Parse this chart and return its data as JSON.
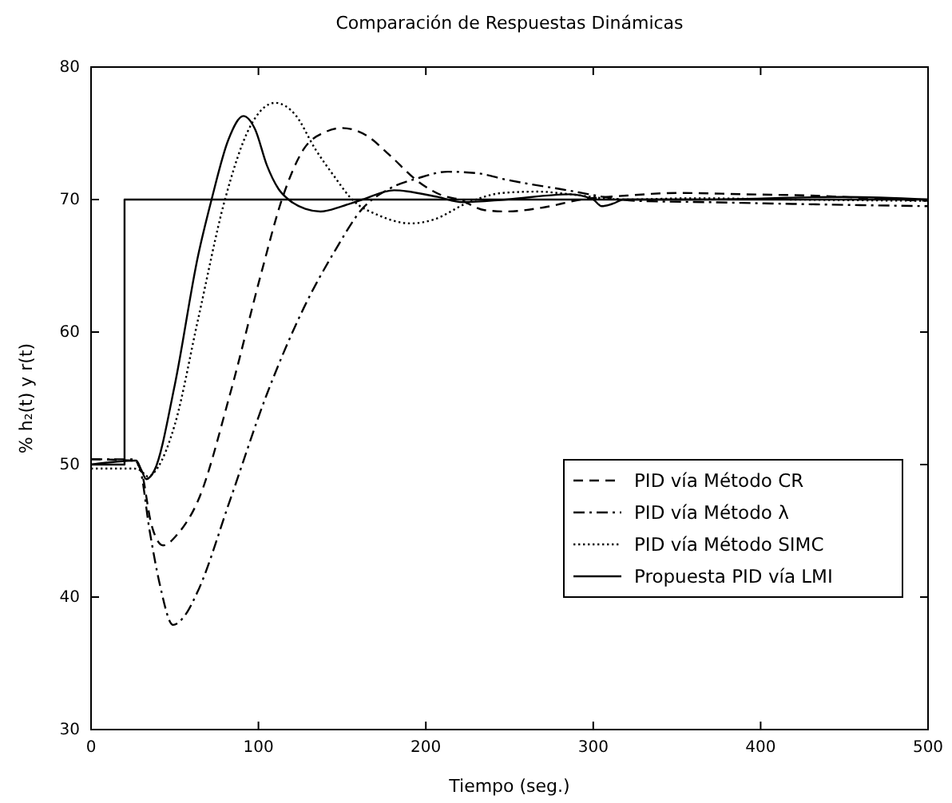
{
  "chart_data": {
    "type": "line",
    "title": "Comparación de Respuestas Dinámicas",
    "xlabel": "Tiempo (seg.)",
    "ylabel": "% h₂(t) y r(t)",
    "xlim": [
      0,
      500
    ],
    "ylim": [
      30,
      80
    ],
    "xticks": [
      0,
      100,
      200,
      300,
      400,
      500
    ],
    "yticks": [
      30,
      40,
      50,
      60,
      70,
      80
    ],
    "grid": false,
    "legend": "bottom right",
    "series": [
      {
        "name": "PID vía Método CR",
        "color": "#000000",
        "line_style": "dashed",
        "x": [
          0,
          25,
          30,
          36,
          43,
          52,
          64,
          83,
          102,
          114,
          127,
          140,
          150,
          165,
          178,
          195,
          210,
          220,
          235,
          248,
          270,
          293,
          320,
          351,
          390,
          430,
          465,
          500
        ],
        "values": [
          50.4,
          50.3,
          49.5,
          45.5,
          43.9,
          44.8,
          47.3,
          55.3,
          64.6,
          70,
          73.8,
          75.1,
          75.4,
          74.8,
          73.4,
          71.4,
          70.3,
          70,
          69.2,
          69.1,
          69.4,
          70,
          70.3,
          70.5,
          70.4,
          70.3,
          70.1,
          69.9
        ]
      },
      {
        "name": "PID vía Método λ",
        "color": "#000000",
        "line_style": "dashdot",
        "x": [
          0,
          25,
          29,
          35,
          41,
          49,
          56,
          64,
          83,
          105,
          127,
          146,
          162,
          178,
          195,
          213,
          230,
          248,
          280,
          327,
          370,
          407,
          450,
          500
        ],
        "values": [
          50.4,
          50.4,
          49.8,
          45,
          41,
          37.9,
          38.6,
          40.5,
          47.3,
          55.3,
          61.8,
          66.2,
          69.3,
          70.8,
          71.6,
          72.1,
          72,
          71.5,
          70.8,
          69.9,
          69.8,
          69.7,
          69.6,
          69.5
        ]
      },
      {
        "name": "PID vía Método SIMC",
        "color": "#000000",
        "line_style": "dotted",
        "x": [
          0,
          25,
          29,
          34,
          40,
          50,
          64,
          80,
          95,
          110,
          122,
          134,
          145,
          156,
          172,
          191,
          205,
          224,
          246,
          267,
          286,
          318,
          360,
          420,
          500
        ],
        "values": [
          49.7,
          49.7,
          49.6,
          49.1,
          49.8,
          53,
          61,
          70,
          75.5,
          77.3,
          76.4,
          73.8,
          71.8,
          70,
          68.8,
          68.2,
          68.5,
          69.7,
          70.5,
          70.6,
          70.4,
          70,
          70.1,
          70,
          69.9
        ]
      },
      {
        "name": "Propuesta PID vía LMI",
        "color": "#000000",
        "line_style": "solid",
        "x": [
          0,
          27,
          30,
          33,
          38,
          50,
          64,
          72,
          82,
          91,
          98,
          105,
          112,
          118,
          128,
          137,
          150,
          162,
          181,
          207,
          222,
          248,
          286,
          300,
          305,
          312,
          318,
          360,
          450,
          500
        ],
        "values": [
          50,
          50.3,
          49.6,
          48.9,
          49.6,
          56,
          65.8,
          70,
          74.5,
          76.3,
          75.3,
          72.6,
          70.8,
          70,
          69.3,
          69.1,
          69.5,
          70,
          70.7,
          70.2,
          69.8,
          70,
          70.4,
          70,
          69.5,
          69.7,
          70,
          70,
          70.2,
          70
        ]
      },
      {
        "color": "#000000",
        "line_style": "solid",
        "x": [
          0,
          20,
          20,
          500
        ],
        "values": [
          50,
          50,
          70,
          70
        ]
      }
    ]
  }
}
